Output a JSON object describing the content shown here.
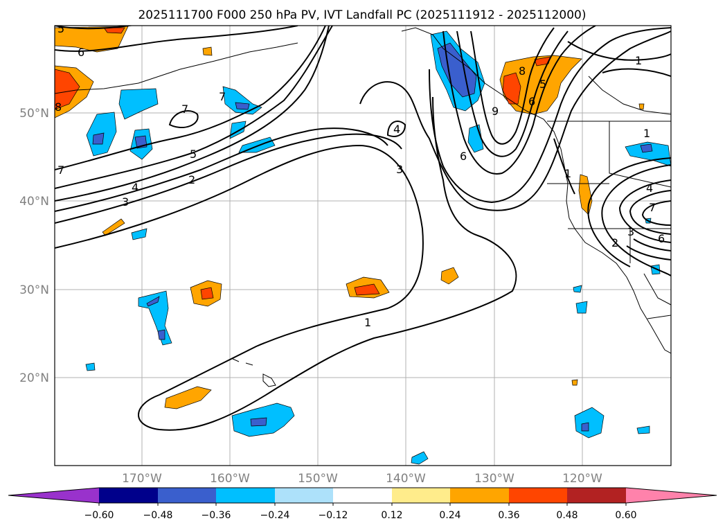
{
  "title": "2025111700 F000 250 hPa PV, IVT Landfall PC (2025111912 - 2025112000)",
  "axes": {
    "lat_ticks": [
      "50°N",
      "40°N",
      "30°N",
      "20°N"
    ],
    "lon_ticks": [
      "170°W",
      "160°W",
      "150°W",
      "140°W",
      "130°W",
      "120°W"
    ]
  },
  "colorbar": {
    "tick_labels": [
      "−0.60",
      "−0.48",
      "−0.36",
      "−0.24",
      "−0.12",
      "0.12",
      "0.24",
      "0.36",
      "0.48",
      "0.60"
    ],
    "colors": [
      "#9932CC",
      "#00008B",
      "#3A5FCD",
      "#00BFFF",
      "#ADE1FA",
      "#FFFFFF",
      "#FFEC8B",
      "#FFA500",
      "#FF4500",
      "#B22222",
      "#FF82AB"
    ]
  },
  "contour_labels": [
    "5",
    "6",
    "8",
    "7",
    "7",
    "7",
    "5",
    "4",
    "3",
    "2",
    "4",
    "3",
    "1",
    "6",
    "8",
    "5",
    "9",
    "6",
    "1",
    "1",
    "4",
    "7",
    "2",
    "3",
    "6",
    "1"
  ],
  "colors": {
    "positive_mid": "#FFA500",
    "positive_high": "#FF4500",
    "negative_mid": "#00BFFF",
    "negative_high": "#3A5FCD"
  }
}
